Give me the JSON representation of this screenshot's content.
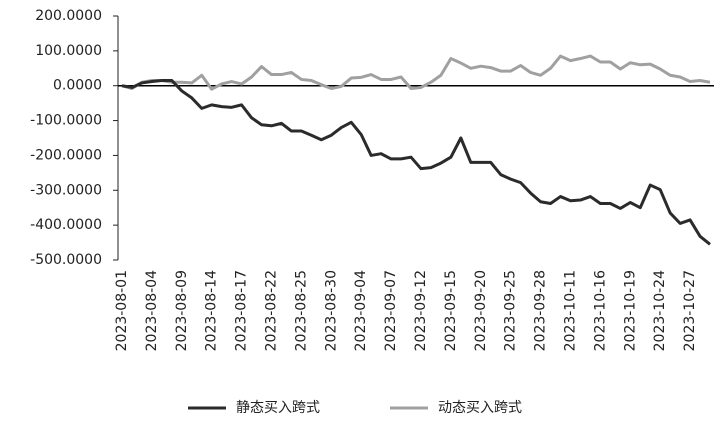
{
  "chart_data": {
    "type": "line",
    "categories": [
      "2023-08-01",
      null,
      null,
      "2023-08-04",
      null,
      null,
      "2023-08-09",
      null,
      null,
      "2023-08-14",
      null,
      null,
      "2023-08-17",
      null,
      null,
      "2023-08-22",
      null,
      null,
      "2023-08-25",
      null,
      null,
      "2023-08-30",
      null,
      null,
      "2023-09-04",
      null,
      null,
      "2023-09-07",
      null,
      null,
      "2023-09-12",
      null,
      null,
      "2023-09-15",
      null,
      null,
      "2023-09-20",
      null,
      null,
      "2023-09-25",
      null,
      null,
      "2023-09-28",
      null,
      null,
      "2023-10-11",
      null,
      null,
      "2023-10-16",
      null,
      null,
      "2023-10-19",
      null,
      null,
      "2023-10-24",
      null,
      null,
      "2023-10-27",
      null,
      null
    ],
    "series": [
      {
        "name": "静态买入跨式",
        "color": "#2b2b2b",
        "values": [
          0,
          -5,
          8,
          12,
          15,
          15,
          -15,
          -35,
          -65,
          -55,
          -60,
          -62,
          -55,
          -92,
          -112,
          -115,
          -108,
          -130,
          -130,
          -142,
          -155,
          -142,
          -120,
          -105,
          -140,
          -200,
          -195,
          -210,
          -210,
          -205,
          -238,
          -235,
          -222,
          -205,
          -150,
          -220,
          -220,
          -220,
          -255,
          -268,
          -278,
          -308,
          -333,
          -338,
          -318,
          -330,
          -328,
          -318,
          -338,
          -338,
          -352,
          -335,
          -350,
          -285,
          -298,
          -365,
          -395,
          -385,
          -432,
          -455
        ]
      },
      {
        "name": "动态买入跨式",
        "color": "#a0a0a0",
        "values": [
          0,
          -8,
          10,
          15,
          15,
          10,
          10,
          8,
          30,
          -10,
          5,
          12,
          5,
          25,
          55,
          32,
          32,
          38,
          18,
          15,
          3,
          -8,
          -2,
          22,
          24,
          32,
          18,
          18,
          25,
          -8,
          -5,
          10,
          30,
          78,
          65,
          50,
          56,
          52,
          42,
          42,
          58,
          38,
          30,
          50,
          85,
          72,
          78,
          85,
          68,
          68,
          48,
          66,
          60,
          62,
          48,
          30,
          25,
          12,
          15,
          10
        ]
      }
    ],
    "ylim": [
      -500,
      200
    ],
    "yticks": [
      {
        "value": 200,
        "label": "200.0000"
      },
      {
        "value": 100,
        "label": "100.0000"
      },
      {
        "value": 0,
        "label": "0.0000"
      },
      {
        "value": -100,
        "label": "-100.0000"
      },
      {
        "value": -200,
        "label": "-200.0000"
      },
      {
        "value": -300,
        "label": "-300.0000"
      },
      {
        "value": -400,
        "label": "-400.0000"
      },
      {
        "value": -500,
        "label": "-500.0000"
      }
    ],
    "grid": false,
    "legend": "bottom"
  }
}
